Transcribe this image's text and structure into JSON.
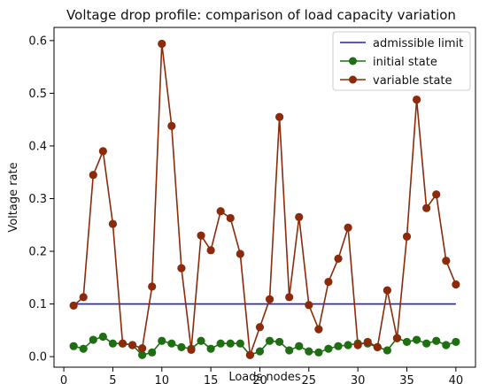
{
  "chart_data": {
    "type": "line",
    "title": "Voltage drop profile: comparison of load capacity variation",
    "xlabel": "Loads nodes",
    "ylabel": "Voltage rate",
    "xlim": [
      -1.0,
      42.0
    ],
    "ylim": [
      -0.02,
      0.625
    ],
    "xticks": [
      0,
      5,
      10,
      15,
      20,
      25,
      30,
      35,
      40
    ],
    "yticks": [
      0.0,
      0.1,
      0.2,
      0.3,
      0.4,
      0.5,
      0.6
    ],
    "grid": false,
    "legend_position": "top-right",
    "x": [
      1,
      2,
      3,
      4,
      5,
      6,
      7,
      8,
      9,
      10,
      11,
      12,
      13,
      14,
      15,
      16,
      17,
      18,
      19,
      20,
      21,
      22,
      23,
      24,
      25,
      26,
      27,
      28,
      29,
      30,
      31,
      32,
      33,
      34,
      35,
      36,
      37,
      38,
      39,
      40
    ],
    "series": [
      {
        "name": "admissible limit",
        "color": "#1f1fbf",
        "marker": false,
        "x": [
          1,
          40
        ],
        "values": [
          0.1,
          0.1
        ]
      },
      {
        "name": "initial state",
        "color": "#1e6e12",
        "marker": true,
        "values": [
          0.02,
          0.015,
          0.032,
          0.038,
          0.025,
          0.025,
          0.022,
          0.003,
          0.008,
          0.03,
          0.025,
          0.018,
          0.015,
          0.03,
          0.015,
          0.025,
          0.025,
          0.025,
          0.003,
          0.01,
          0.03,
          0.028,
          0.012,
          0.02,
          0.01,
          0.008,
          0.015,
          0.02,
          0.022,
          0.025,
          0.025,
          0.018,
          0.012,
          0.035,
          0.028,
          0.032,
          0.025,
          0.03,
          0.022,
          0.028
        ]
      },
      {
        "name": "variable state",
        "color": "#8b2b0b",
        "marker": true,
        "values": [
          0.097,
          0.113,
          0.345,
          0.39,
          0.252,
          0.025,
          0.022,
          0.016,
          0.133,
          0.594,
          0.438,
          0.168,
          0.013,
          0.23,
          0.202,
          0.276,
          0.263,
          0.195,
          0.003,
          0.056,
          0.109,
          0.455,
          0.113,
          0.265,
          0.098,
          0.052,
          0.142,
          0.186,
          0.245,
          0.022,
          0.028,
          0.018,
          0.126,
          0.035,
          0.228,
          0.488,
          0.282,
          0.308,
          0.182,
          0.137
        ]
      }
    ]
  }
}
